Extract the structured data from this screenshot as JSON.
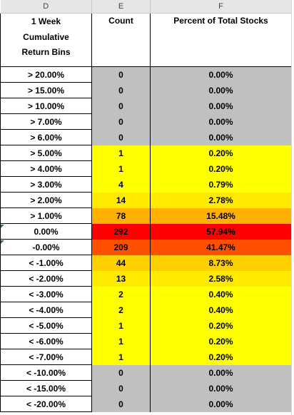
{
  "columns": [
    "D",
    "E",
    "F"
  ],
  "headers": {
    "bins_lines": [
      "1 Week",
      "Cumulative",
      "Return Bins"
    ],
    "count": "Count",
    "percent": "Percent of Total Stocks"
  },
  "colors": {
    "gray": "#c0c0c0",
    "yellow": "#ffff00",
    "light_orange": "#ffd000",
    "orange": "#ffb000",
    "red_orange": "#ff5000",
    "red": "#ff0000"
  },
  "rows": [
    {
      "bin": "> 20.00%",
      "count": "0",
      "percent": "0.00%",
      "color": "#c0c0c0"
    },
    {
      "bin": "> 15.00%",
      "count": "0",
      "percent": "0.00%",
      "color": "#c0c0c0"
    },
    {
      "bin": "> 10.00%",
      "count": "0",
      "percent": "0.00%",
      "color": "#c0c0c0"
    },
    {
      "bin": "> 7.00%",
      "count": "0",
      "percent": "0.00%",
      "color": "#c0c0c0"
    },
    {
      "bin": "> 6.00%",
      "count": "0",
      "percent": "0.00%",
      "color": "#c0c0c0"
    },
    {
      "bin": "> 5.00%",
      "count": "1",
      "percent": "0.20%",
      "color": "#ffff00"
    },
    {
      "bin": "> 4.00%",
      "count": "1",
      "percent": "0.20%",
      "color": "#ffff00"
    },
    {
      "bin": "> 3.00%",
      "count": "4",
      "percent": "0.79%",
      "color": "#ffff00"
    },
    {
      "bin": "> 2.00%",
      "count": "14",
      "percent": "2.78%",
      "color": "#ffea00"
    },
    {
      "bin": "> 1.00%",
      "count": "78",
      "percent": "15.48%",
      "color": "#ffb000"
    },
    {
      "bin": "0.00%",
      "count": "292",
      "percent": "57.94%",
      "color": "#ff0000"
    },
    {
      "bin": "-0.00%",
      "count": "209",
      "percent": "41.47%",
      "color": "#ff5000"
    },
    {
      "bin": "< -1.00%",
      "count": "44",
      "percent": "8.73%",
      "color": "#ffd000"
    },
    {
      "bin": "< -2.00%",
      "count": "13",
      "percent": "2.58%",
      "color": "#ffea00"
    },
    {
      "bin": "< -3.00%",
      "count": "2",
      "percent": "0.40%",
      "color": "#ffff00"
    },
    {
      "bin": "< -4.00%",
      "count": "2",
      "percent": "0.40%",
      "color": "#ffff00"
    },
    {
      "bin": "< -5.00%",
      "count": "1",
      "percent": "0.20%",
      "color": "#ffff00"
    },
    {
      "bin": "< -6.00%",
      "count": "1",
      "percent": "0.20%",
      "color": "#ffff00"
    },
    {
      "bin": "< -7.00%",
      "count": "1",
      "percent": "0.20%",
      "color": "#ffff00"
    },
    {
      "bin": "< -10.00%",
      "count": "0",
      "percent": "0.00%",
      "color": "#c0c0c0"
    },
    {
      "bin": "< -15.00%",
      "count": "0",
      "percent": "0.00%",
      "color": "#c0c0c0"
    },
    {
      "bin": "< -20.00%",
      "count": "0",
      "percent": "0.00%",
      "color": "#c0c0c0"
    }
  ]
}
